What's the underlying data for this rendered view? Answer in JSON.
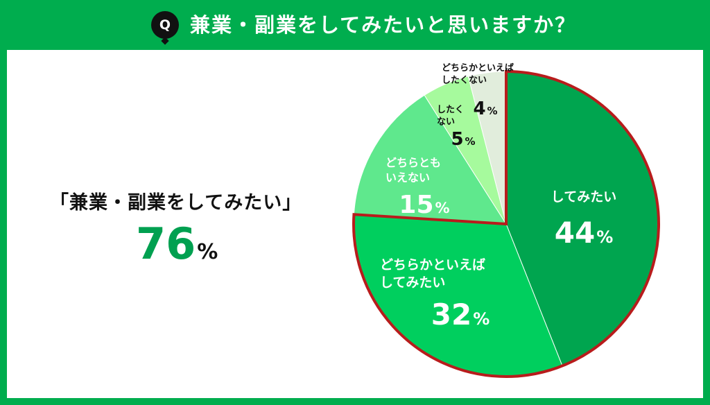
{
  "header": {
    "badge": "Q",
    "question": "兼業・副業をしてみたいと思いますか？"
  },
  "summary": {
    "label": "「兼業・副業をしてみたい」",
    "value": "76",
    "unit": "%"
  },
  "colors": {
    "background": "#00ad4e",
    "highlight": "#b81c1c",
    "summary_value": "#00a050"
  },
  "chart_data": {
    "type": "pie",
    "unit": "%",
    "slices": [
      {
        "label_lines": [
          "してみたい"
        ],
        "value": 44,
        "color": "#00a54f",
        "highlighted": true,
        "text_color": "#ffffff"
      },
      {
        "label_lines": [
          "どちらかといえば",
          "してみたい"
        ],
        "value": 32,
        "color": "#00cf5e",
        "highlighted": true,
        "text_color": "#ffffff"
      },
      {
        "label_lines": [
          "どちらとも",
          "いえない"
        ],
        "value": 15,
        "color": "#5fe88d",
        "highlighted": false,
        "text_color": "#ffffff"
      },
      {
        "label_lines": [
          "したく",
          "ない"
        ],
        "value": 5,
        "color": "#a6fa9d",
        "highlighted": false,
        "text_color": "#111111"
      },
      {
        "label_lines": [
          "どちらかといえば",
          "したくない"
        ],
        "value": 4,
        "color": "#e1eddc",
        "highlighted": false,
        "text_color": "#111111"
      }
    ]
  }
}
